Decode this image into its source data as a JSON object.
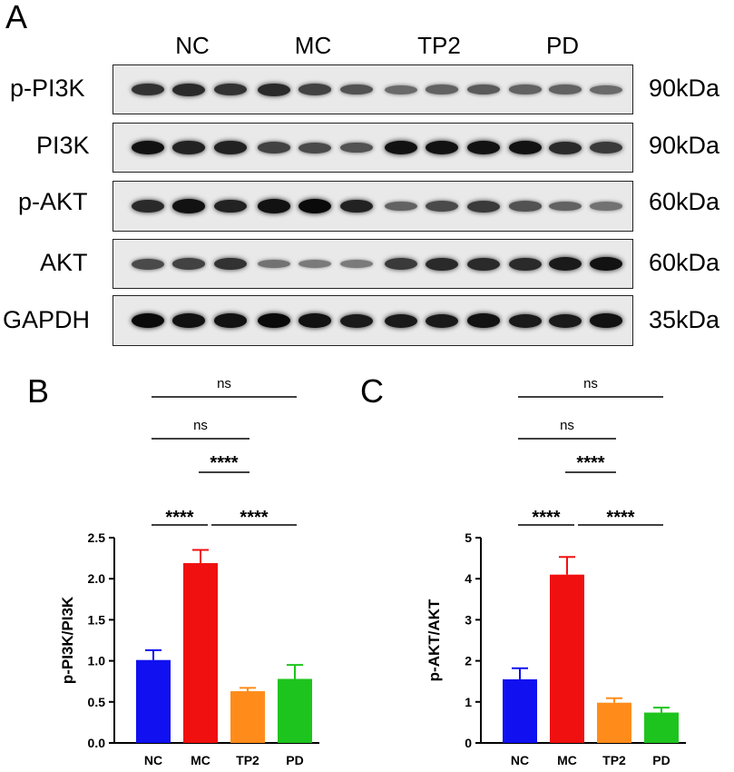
{
  "panel_a": {
    "letter": "A",
    "groups": [
      "NC",
      "MC",
      "TP2",
      "PD"
    ],
    "rows": [
      {
        "label": "p-PI3K",
        "kda": "90kDa",
        "intensity": [
          0.75,
          0.8,
          0.75,
          0.8,
          0.65,
          0.55,
          0.4,
          0.45,
          0.5,
          0.45,
          0.45,
          0.4
        ]
      },
      {
        "label": "PI3K",
        "kda": "90kDa",
        "intensity": [
          0.95,
          0.85,
          0.85,
          0.65,
          0.6,
          0.55,
          0.95,
          0.95,
          0.95,
          0.95,
          0.8,
          0.7
        ]
      },
      {
        "label": "p-AKT",
        "kda": "60kDa",
        "intensity": [
          0.8,
          0.95,
          0.85,
          0.95,
          1.0,
          0.85,
          0.45,
          0.6,
          0.7,
          0.55,
          0.45,
          0.35
        ]
      },
      {
        "label": "AKT",
        "kda": "60kDa",
        "intensity": [
          0.6,
          0.65,
          0.75,
          0.35,
          0.3,
          0.3,
          0.7,
          0.8,
          0.8,
          0.8,
          0.9,
          0.95
        ]
      },
      {
        "label": "GAPDH",
        "kda": "35kDa",
        "intensity": [
          1.0,
          0.95,
          0.95,
          1.0,
          0.95,
          0.9,
          0.9,
          0.9,
          0.95,
          0.9,
          0.9,
          0.95
        ]
      }
    ]
  },
  "chart_data": [
    {
      "type": "bar",
      "letter": "B",
      "categories": [
        "NC",
        "MC",
        "TP2",
        "PD"
      ],
      "values": [
        1.01,
        2.19,
        0.63,
        0.78
      ],
      "errors": [
        0.12,
        0.16,
        0.04,
        0.17
      ],
      "colors": [
        "#1010f0",
        "#f01010",
        "#ff8c1a",
        "#1ec41e"
      ],
      "ylabel": "p-PI3K/PI3K",
      "ylim": [
        0,
        2.5
      ],
      "yticks": [
        "0.0",
        "0.5",
        "1.0",
        "1.5",
        "2.0",
        "2.5"
      ],
      "comparisons": [
        {
          "from": 0,
          "to": 3,
          "label": "ns"
        },
        {
          "from": 0,
          "to": 2,
          "label": "ns"
        },
        {
          "from": 1,
          "to": 2,
          "label": "****"
        },
        {
          "from": 0,
          "to": 1,
          "label": "****"
        },
        {
          "from": 1,
          "to": 3,
          "label": "****"
        }
      ]
    },
    {
      "type": "bar",
      "letter": "C",
      "categories": [
        "NC",
        "MC",
        "TP2",
        "PD"
      ],
      "values": [
        1.55,
        4.1,
        0.98,
        0.74
      ],
      "errors": [
        0.27,
        0.43,
        0.11,
        0.12
      ],
      "colors": [
        "#1010f0",
        "#f01010",
        "#ff8c1a",
        "#1ec41e"
      ],
      "ylabel": "p-AKT/AKT",
      "ylim": [
        0,
        5
      ],
      "yticks": [
        "0",
        "1",
        "2",
        "3",
        "4",
        "5"
      ],
      "comparisons": [
        {
          "from": 0,
          "to": 3,
          "label": "ns"
        },
        {
          "from": 0,
          "to": 2,
          "label": "ns"
        },
        {
          "from": 1,
          "to": 2,
          "label": "****"
        },
        {
          "from": 0,
          "to": 1,
          "label": "****"
        },
        {
          "from": 1,
          "to": 3,
          "label": "****"
        }
      ]
    }
  ]
}
